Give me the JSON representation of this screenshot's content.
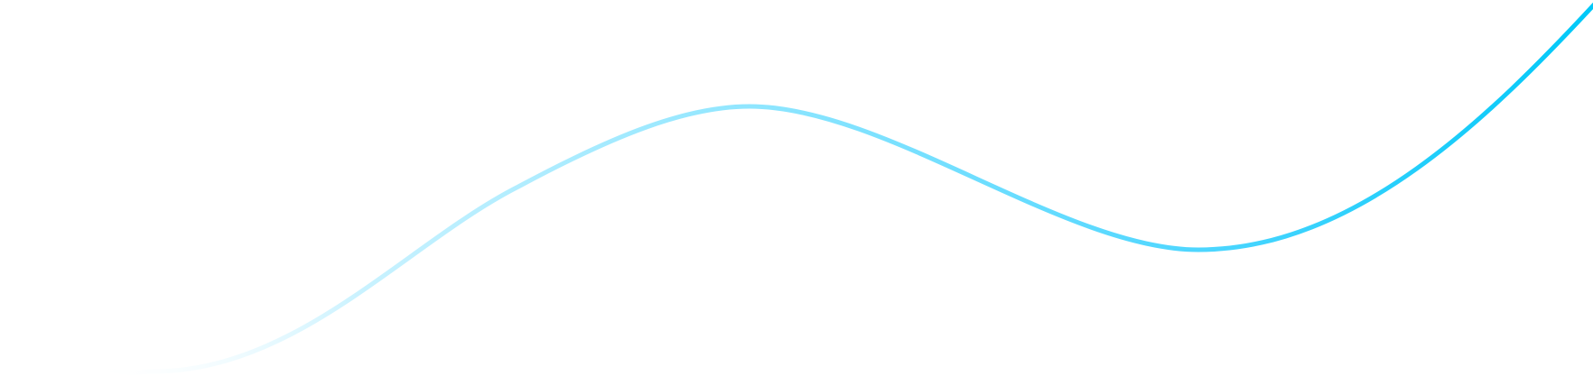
{
  "decoration": {
    "type": "wave-line",
    "colors": {
      "start": "#ffffff",
      "light": "#c9f2ff",
      "mid": "#8fe6ff",
      "strong": "#4dd6ff",
      "end": "#00c8f8",
      "background": "#ffffff"
    }
  }
}
